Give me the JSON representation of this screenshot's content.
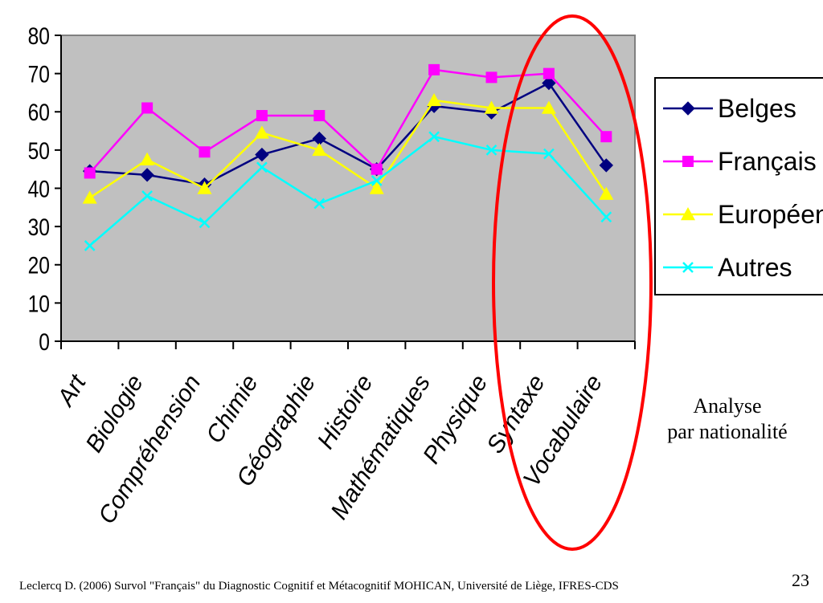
{
  "chart_data": {
    "type": "line",
    "categories": [
      "Art",
      "Biologie",
      "Compréhension",
      "Chimie",
      "Géographie",
      "Histoire",
      "Mathématiques",
      "Physique",
      "Syntaxe",
      "Vocabulaire"
    ],
    "series": [
      {
        "name": "Belges",
        "values": [
          44.5,
          43.5,
          41,
          48.8,
          53,
          45,
          61.5,
          59.8,
          67.5,
          46
        ],
        "color": "#000080",
        "marker": "diamond"
      },
      {
        "name": "Français",
        "values": [
          44,
          61,
          49.5,
          59,
          59,
          45,
          71,
          69,
          70,
          53.5
        ],
        "color": "#FF00FF",
        "marker": "square"
      },
      {
        "name": "Européens",
        "values": [
          37.5,
          47.5,
          40,
          54.5,
          50,
          40,
          63,
          61,
          61,
          38.5
        ],
        "color": "#FFFF00",
        "marker": "triangle"
      },
      {
        "name": "Autres",
        "values": [
          25,
          38,
          31,
          45.5,
          36,
          42,
          53.5,
          50,
          49,
          32.5
        ],
        "color": "#00FFFF",
        "marker": "x"
      }
    ],
    "yticks": [
      0,
      10,
      20,
      30,
      40,
      50,
      60,
      70,
      80
    ],
    "ylim": [
      0,
      80
    ],
    "plot_background": "#C0C0C0",
    "legend_position": "right",
    "highlight_ellipse_color": "#FF0000"
  },
  "caption": {
    "line1": "Analyse",
    "line2": "par nationalité"
  },
  "footer": "Leclercq D. (2006) Survol \"Français\" du Diagnostic Cognitif et Métacognitif MOHICAN,  Université de Liège, IFRES-CDS",
  "page_number": "23"
}
